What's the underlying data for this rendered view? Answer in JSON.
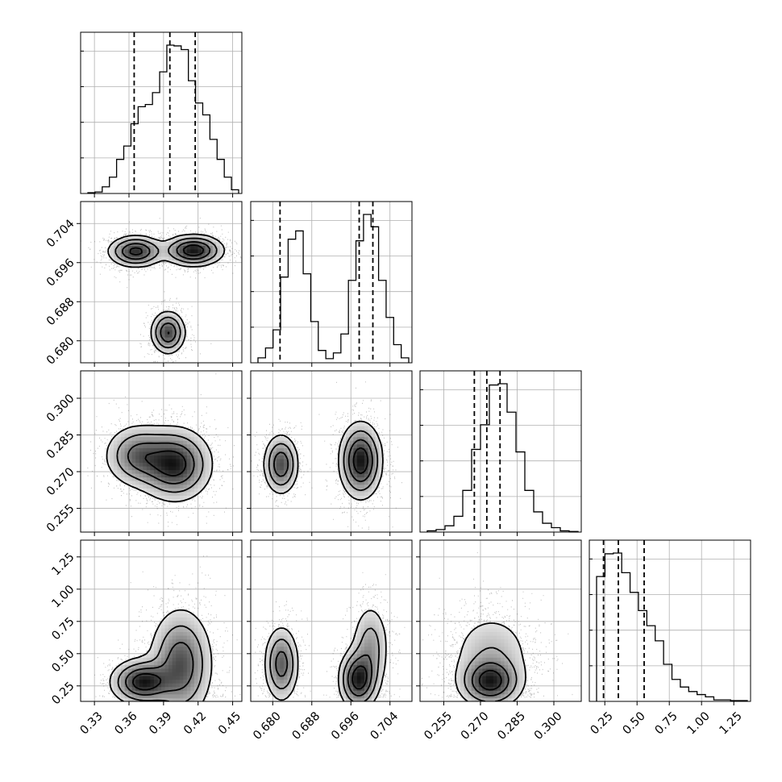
{
  "chart_data": {
    "type": "scatter",
    "grid": true,
    "parameters": [
      {
        "ticks": [
          0.33,
          0.36,
          0.39,
          0.42,
          0.45
        ],
        "tick_labels": [
          "0.33",
          "0.36",
          "0.39",
          "0.42",
          "0.45"
        ],
        "range": [
          0.318,
          0.458
        ]
      },
      {
        "ticks": [
          0.68,
          0.688,
          0.696,
          0.704
        ],
        "tick_labels": [
          "0.680",
          "0.688",
          "0.696",
          "0.704"
        ],
        "range": [
          0.6755,
          0.7085
        ]
      },
      {
        "ticks": [
          0.255,
          0.27,
          0.285,
          0.3
        ],
        "tick_labels": [
          "0.255",
          "0.270",
          "0.285",
          "0.300"
        ],
        "range": [
          0.2453,
          0.3112
        ]
      },
      {
        "ticks": [
          0.25,
          0.5,
          0.75,
          1.0,
          1.25
        ],
        "tick_labels": [
          "0.25",
          "0.50",
          "0.75",
          "1.00",
          "1.25"
        ],
        "range": [
          0.13,
          1.38
        ]
      }
    ],
    "histograms": [
      {
        "parameter": 0,
        "quantiles": [
          0.3645,
          0.3955,
          0.4175
        ],
        "counts": [
          1,
          2,
          9,
          22,
          46,
          64,
          94,
          117,
          120,
          136,
          164,
          200,
          199,
          194,
          152,
          122,
          106,
          73,
          46,
          22,
          5
        ]
      },
      {
        "parameter": 1,
        "quantiles": [
          0.6815,
          0.6977,
          0.7005
        ],
        "counts": [
          6,
          18,
          40,
          104,
          150,
          160,
          108,
          50,
          15,
          5,
          12,
          35,
          100,
          148,
          180,
          165,
          100,
          55,
          22,
          6
        ]
      },
      {
        "parameter": 2,
        "quantiles": [
          0.2675,
          0.2726,
          0.278
        ],
        "counts": [
          2,
          4,
          10,
          25,
          66,
          131,
          170,
          233,
          235,
          190,
          127,
          66,
          32,
          14,
          7,
          2,
          1
        ]
      },
      {
        "parameter": 3,
        "quantiles": [
          0.24,
          0.355,
          0.555
        ],
        "counts": [
          165,
          195,
          196,
          170,
          144,
          120,
          100,
          80,
          49,
          29,
          19,
          13,
          9,
          6,
          2,
          2,
          1,
          1
        ]
      }
    ],
    "panels_2d": [
      {
        "x_parameter": 0,
        "y_parameter": 1,
        "modes": [
          {
            "x": 0.366,
            "y": 0.6983,
            "sx": 0.012,
            "sy": 0.0016,
            "w": 0.45
          },
          {
            "x": 0.416,
            "y": 0.6985,
            "sx": 0.013,
            "sy": 0.0016,
            "w": 0.55
          },
          {
            "x": 0.394,
            "y": 0.6817,
            "sx": 0.0075,
            "sy": 0.0022,
            "w": 0.35
          }
        ]
      },
      {
        "x_parameter": 0,
        "y_parameter": 2,
        "modes": [
          {
            "x": 0.368,
            "y": 0.2765,
            "sx": 0.015,
            "sy": 0.0065,
            "w": 0.35
          },
          {
            "x": 0.4,
            "y": 0.273,
            "sx": 0.016,
            "sy": 0.0075,
            "w": 0.65
          }
        ]
      },
      {
        "x_parameter": 1,
        "y_parameter": 2,
        "modes": [
          {
            "x": 0.6817,
            "y": 0.273,
            "sx": 0.0018,
            "sy": 0.0062,
            "w": 0.33
          },
          {
            "x": 0.698,
            "y": 0.2745,
            "sx": 0.0022,
            "sy": 0.0078,
            "w": 0.67
          }
        ]
      },
      {
        "x_parameter": 0,
        "y_parameter": 3,
        "modes": [
          {
            "x": 0.372,
            "y": 0.28,
            "sx": 0.014,
            "sy": 0.09,
            "w": 0.35
          },
          {
            "x": 0.405,
            "y": 0.42,
            "sx": 0.014,
            "sy": 0.22,
            "w": 0.65
          }
        ]
      },
      {
        "x_parameter": 1,
        "y_parameter": 3,
        "modes": [
          {
            "x": 0.6818,
            "y": 0.42,
            "sx": 0.0018,
            "sy": 0.15,
            "w": 0.33
          },
          {
            "x": 0.6975,
            "y": 0.3,
            "sx": 0.002,
            "sy": 0.12,
            "w": 0.4
          },
          {
            "x": 0.7,
            "y": 0.55,
            "sx": 0.002,
            "sy": 0.18,
            "w": 0.27
          }
        ]
      },
      {
        "x_parameter": 2,
        "y_parameter": 3,
        "modes": [
          {
            "x": 0.274,
            "y": 0.28,
            "sx": 0.0065,
            "sy": 0.1,
            "w": 0.55
          },
          {
            "x": 0.2745,
            "y": 0.5,
            "sx": 0.009,
            "sy": 0.18,
            "w": 0.45
          }
        ]
      }
    ]
  }
}
